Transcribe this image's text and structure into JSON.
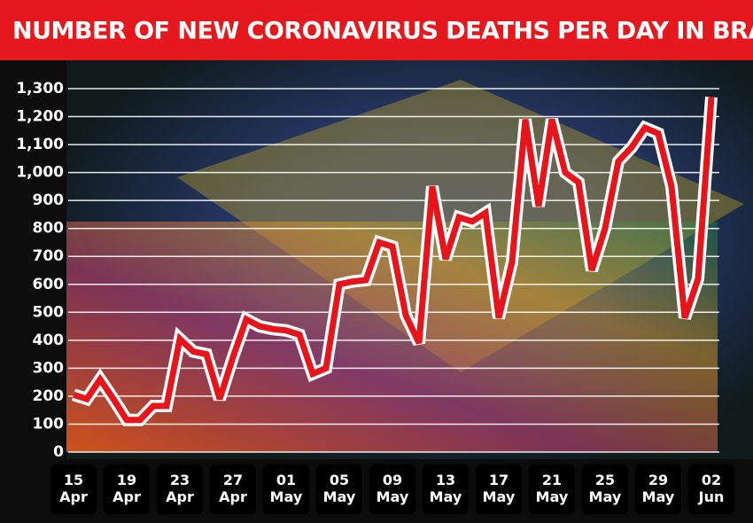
{
  "chart_data": {
    "type": "line",
    "title": "NUMBER OF NEW CORONAVIRUS DEATHS PER DAY IN BRAZIL",
    "categories": [
      "15 Apr",
      null,
      null,
      null,
      "19 Apr",
      null,
      null,
      null,
      "23 Apr",
      null,
      null,
      null,
      "27 Apr",
      null,
      null,
      null,
      "01 May",
      null,
      null,
      null,
      "05 May",
      null,
      null,
      null,
      "09 May",
      null,
      null,
      null,
      "13 May",
      null,
      null,
      null,
      "17 May",
      null,
      null,
      null,
      "21 May",
      null,
      null,
      null,
      "25 May",
      null,
      null,
      null,
      "29 May",
      null,
      null,
      null,
      "02 Jun"
    ],
    "values": [
      205,
      190,
      260,
      190,
      115,
      115,
      165,
      165,
      405,
      360,
      350,
      190,
      340,
      475,
      450,
      440,
      435,
      420,
      280,
      300,
      600,
      610,
      615,
      750,
      735,
      490,
      390,
      950,
      690,
      840,
      825,
      855,
      480,
      680,
      1190,
      880,
      1190,
      1000,
      965,
      650,
      800,
      1040,
      1090,
      1160,
      1140,
      950,
      480,
      620,
      1270
    ],
    "color": "#e8141b",
    "ylim": [
      0,
      1300
    ],
    "yticks": [
      0,
      100,
      200,
      300,
      400,
      500,
      600,
      700,
      800,
      900,
      {
        "value": 1000,
        "label": "1,000"
      },
      {
        "value": 1100,
        "label": "1,100"
      },
      {
        "value": 1200,
        "label": "1,200"
      },
      {
        "value": 1300,
        "label": "1,300"
      }
    ],
    "grid": true
  }
}
